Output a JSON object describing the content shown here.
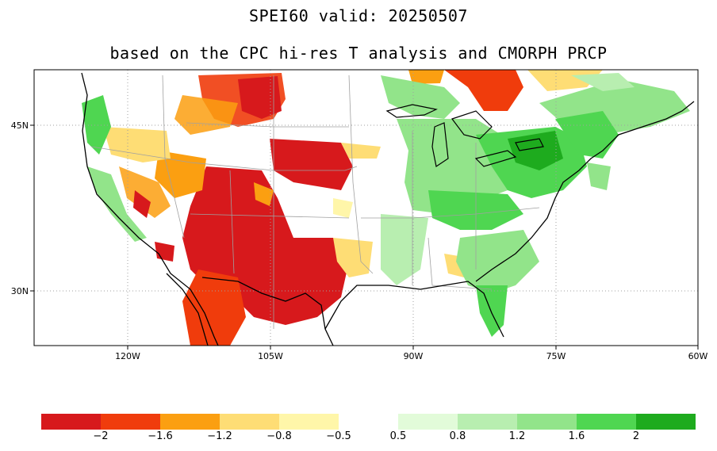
{
  "title_line1": "SPEI60   valid: 20250507",
  "title_line2": "based on the CPC hi-res T analysis and CMORPH PRCP",
  "axes": {
    "lon_labels": [
      "120W",
      "105W",
      "90W",
      "75W",
      "60W"
    ],
    "lat_labels": [
      "45N",
      "30N"
    ],
    "grid": "dotted"
  },
  "colorbar": {
    "bins": [
      {
        "color": "#d7191c"
      },
      {
        "color": "#f03c0c"
      },
      {
        "color": "#fb9f11"
      },
      {
        "color": "#fedd75"
      },
      {
        "color": "#fff6a9"
      },
      {
        "color": "#ffffff"
      },
      {
        "color": "#e2fbd9"
      },
      {
        "color": "#b8eeb0"
      },
      {
        "color": "#92e48a"
      },
      {
        "color": "#4fd651"
      },
      {
        "color": "#1eab1e"
      }
    ],
    "labels": [
      "−2",
      "−1.6",
      "−1.2",
      "−0.8",
      "−0.5",
      "0.5",
      "0.8",
      "1.2",
      "1.6",
      "2"
    ]
  },
  "colors": {
    "land_base": "#ffffff",
    "coast": "#000000",
    "state_lines": "#a0a0a0",
    "grid_lines": "#a0a0a0"
  }
}
